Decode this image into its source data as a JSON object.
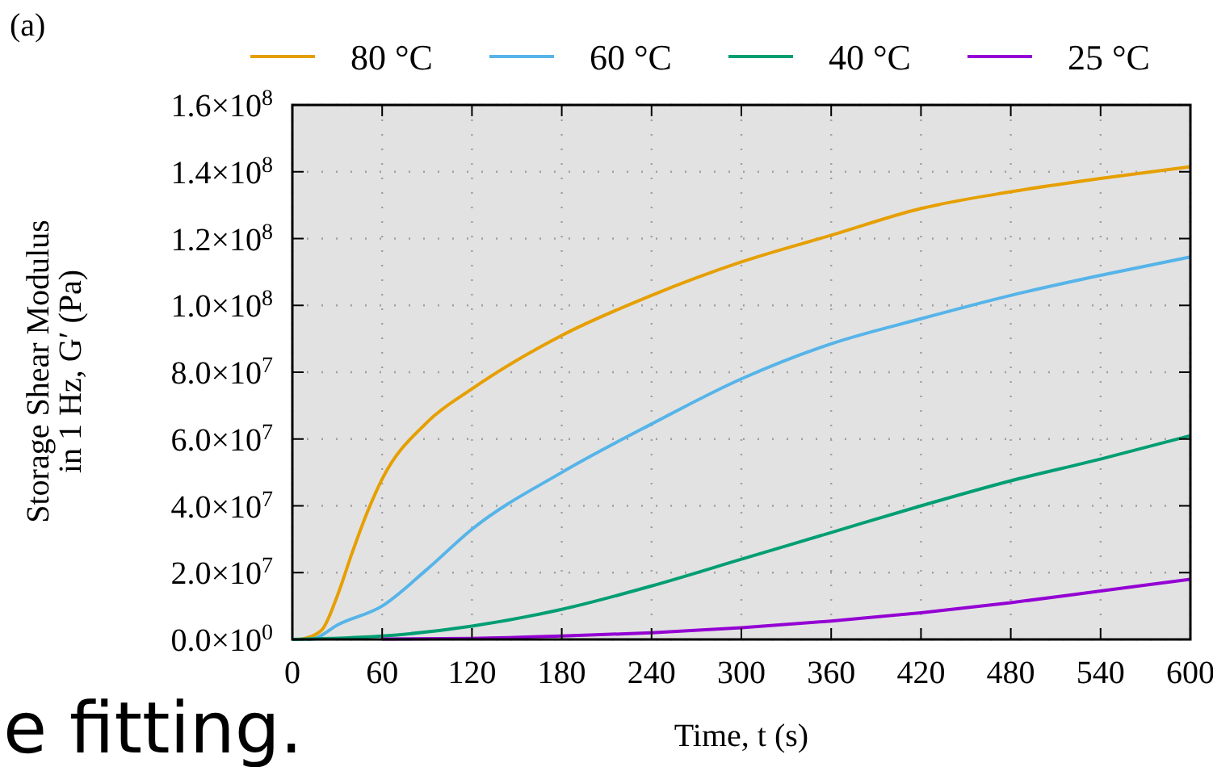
{
  "chart_data": {
    "type": "line",
    "xlabel": "Time, t (s)",
    "ylabel": "Storage Shear Modulus\nin 1 Hz, G′ (Pa)",
    "annotations": [
      "(a)",
      "e fitting."
    ],
    "xlim": [
      0,
      600
    ],
    "xticks": [
      0,
      60,
      120,
      180,
      240,
      300,
      360,
      420,
      480,
      540,
      600
    ],
    "ylim": [
      0,
      160000000
    ],
    "yticks": [
      {
        "value": 0,
        "label": "0.0×10$^{0}$"
      },
      {
        "value": 20000000,
        "label": "2.0×10$^{7}$"
      },
      {
        "value": 40000000,
        "label": "4.0×10$^{7}$"
      },
      {
        "value": 60000000,
        "label": "6.0×10$^{7}$"
      },
      {
        "value": 80000000,
        "label": "8.0×10$^{7}$"
      },
      {
        "value": 100000000,
        "label": "1.0×10$^{8}$"
      },
      {
        "value": 120000000,
        "label": "1.2×10$^{8}$"
      },
      {
        "value": 140000000,
        "label": "1.4×10$^{8}$"
      },
      {
        "value": 160000000,
        "label": "1.6×10$^{8}$"
      }
    ],
    "grid": true,
    "legend": "top",
    "marker": "none",
    "line_style": "solid",
    "series": [
      {
        "name": "80 °C",
        "color": "#e69f00",
        "x": [
          5,
          10,
          20,
          30,
          40,
          50,
          60,
          90,
          120,
          180,
          240,
          300,
          360,
          420,
          480,
          540,
          600
        ],
        "values": [
          0,
          500000,
          3000000,
          13000000,
          26000000,
          38000000,
          48000000,
          65000000,
          75000000,
          91000000,
          103000000,
          113000000,
          121000000,
          129000000,
          134000000,
          138000000,
          141500000
        ]
      },
      {
        "name": "60 °C",
        "color": "#56b4e9",
        "x": [
          10,
          15,
          30,
          60,
          90,
          120,
          180,
          240,
          300,
          360,
          420,
          480,
          540,
          600
        ],
        "values": [
          0,
          300000,
          4300000,
          10000000,
          21000000,
          33000000,
          50000000,
          64500000,
          78000000,
          88500000,
          96000000,
          103000000,
          109000000,
          114500000
        ]
      },
      {
        "name": "40 °C",
        "color": "#009e73",
        "x": [
          0,
          60,
          120,
          180,
          240,
          300,
          360,
          420,
          480,
          540,
          600
        ],
        "values": [
          0,
          1000000,
          4000000,
          9000000,
          16000000,
          24000000,
          32000000,
          40000000,
          47500000,
          54000000,
          61000000
        ]
      },
      {
        "name": "25 °C",
        "color": "#9400d3",
        "x": [
          60,
          120,
          180,
          240,
          300,
          360,
          420,
          480,
          540,
          600
        ],
        "values": [
          100000,
          300000,
          1000000,
          2000000,
          3500000,
          5500000,
          8000000,
          11000000,
          14500000,
          18000000
        ]
      }
    ]
  }
}
